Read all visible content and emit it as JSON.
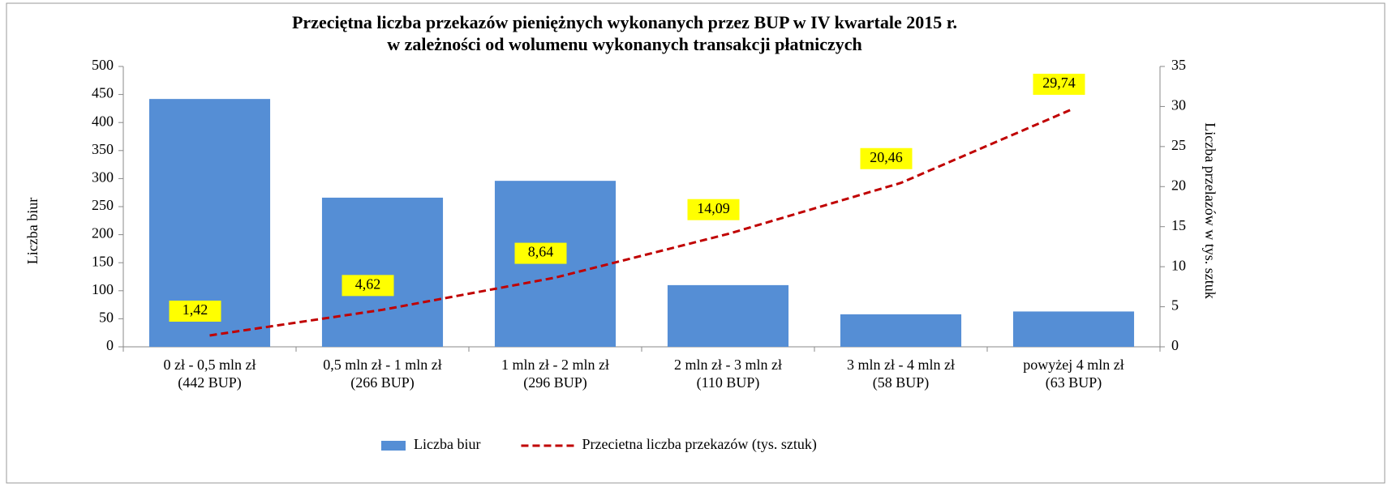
{
  "chart_data": {
    "type": "bar_line",
    "title": [
      "Przeciętna liczba przekazów pieniężnych  wykonanych  przez BUP w IV kwartale 2015 r.",
      "w zależności od wolumenu  wykonanych  transakcji płatniczych"
    ],
    "y_label": "Liczba biur",
    "y2_label": "Liczba przelazów w tys. sztuk",
    "categories": [
      [
        "0 zł  - 0,5 mln zł",
        "(442 BUP)"
      ],
      [
        "0,5 mln zł - 1 mln zł",
        "(266 BUP)"
      ],
      [
        "1 mln zł - 2 mln zł",
        "(296 BUP)"
      ],
      [
        "2 mln zł - 3 mln zł",
        "(110 BUP)"
      ],
      [
        "3 mln zł - 4 mln zł",
        "(58 BUP)"
      ],
      [
        "powyżej   4  mln zł",
        "(63 BUP)"
      ]
    ],
    "series": [
      {
        "name": "Liczba biur",
        "type": "bar",
        "color": "#558ed5",
        "values": [
          442,
          266,
          296,
          110,
          58,
          63
        ]
      },
      {
        "name": "Przecietna liczba przekazów (tys. sztuk)",
        "type": "line",
        "axis": "y2",
        "color": "#c00000",
        "values": [
          1.42,
          4.62,
          8.64,
          14.09,
          20.46,
          29.74
        ],
        "value_labels": [
          "1,42",
          "4,62",
          "8,64",
          "14,09",
          "20,46",
          "29,74"
        ]
      }
    ],
    "ylim": [
      0,
      500
    ],
    "yticks": [
      0,
      50,
      100,
      150,
      200,
      250,
      300,
      350,
      400,
      450,
      500
    ],
    "y2lim": [
      0,
      35
    ],
    "y2ticks": [
      0,
      5,
      10,
      15,
      20,
      25,
      30,
      35
    ],
    "legend": "bottom"
  }
}
